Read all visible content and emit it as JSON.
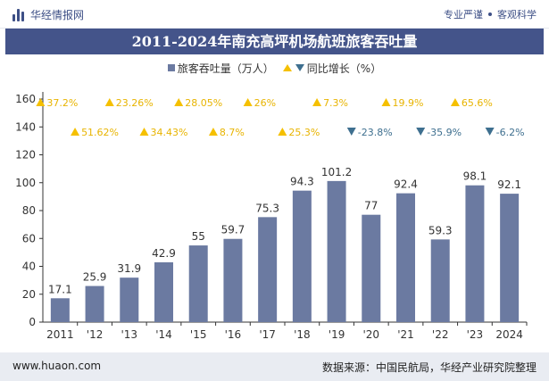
{
  "header": {
    "logo_text": "华经情报网",
    "tagline_left": "专业严谨",
    "tagline_right": "客观科学"
  },
  "footer": {
    "url": "www.huaon.com",
    "source": "数据来源：中国民航局，华经产业研究院整理"
  },
  "colors": {
    "bar": "#6b7aa1",
    "up": "#f5c000",
    "down": "#3e6f8f",
    "title_bg": "#44548a"
  },
  "chart_data": {
    "type": "bar",
    "title": "2011-2024年南充高坪机场航班旅客吞吐量",
    "categories": [
      "2011",
      "'12",
      "'13",
      "'14",
      "'15",
      "'16",
      "'17",
      "'18",
      "'19",
      "'20",
      "'21",
      "'22",
      "'23",
      "2024"
    ],
    "series": [
      {
        "name": "旅客吞吐量（万人）",
        "values": [
          17.1,
          25.9,
          31.9,
          42.9,
          55,
          59.7,
          75.3,
          94.3,
          101.2,
          77,
          92.4,
          59.3,
          98.1,
          92.1
        ]
      }
    ],
    "growth": {
      "name": "同比增长（%）",
      "values": [
        37.2,
        51.62,
        23.26,
        34.43,
        28.05,
        8.7,
        26,
        25.3,
        7.3,
        -23.8,
        19.9,
        -35.9,
        65.6,
        -6.2
      ],
      "labels": [
        "37.2%",
        "51.62%",
        "23.26%",
        "34.43%",
        "28.05%",
        "8.7%",
        "26%",
        "25.3%",
        "7.3%",
        "-23.8%",
        "19.9%",
        "-35.9%",
        "65.6%",
        "-6.2%"
      ]
    },
    "yticks": [
      0,
      20,
      40,
      60,
      80,
      100,
      120,
      140,
      160
    ],
    "ylim": [
      0,
      160
    ],
    "grid": false,
    "legend_position": "top-center"
  }
}
